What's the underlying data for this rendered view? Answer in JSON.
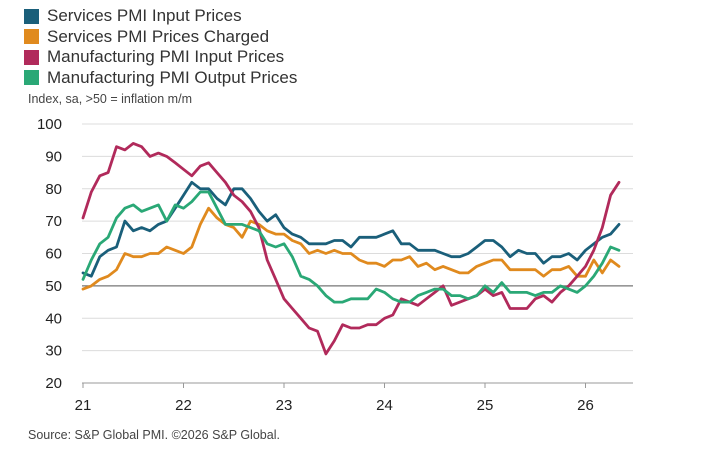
{
  "chart_data": {
    "type": "line",
    "title": "",
    "ylabel": "Index, sa, >50 = inflation m/m",
    "xlabel": "",
    "ylim": [
      20,
      100
    ],
    "yticks": [
      100,
      90,
      80,
      70,
      60,
      50,
      40,
      30,
      20
    ],
    "xlim": [
      21,
      26.5
    ],
    "xticks": [
      "21",
      "22",
      "23",
      "24",
      "25",
      "26"
    ],
    "reference_line": 50,
    "grid": "horizontal",
    "legend_position": "top-left",
    "series": [
      {
        "name": "Services PMI Input Prices",
        "color": "#1a5f7a",
        "x": [
          21.0,
          21.083,
          21.167,
          21.25,
          21.333,
          21.417,
          21.5,
          21.583,
          21.667,
          21.75,
          21.833,
          21.917,
          22.0,
          22.083,
          22.167,
          22.25,
          22.333,
          22.417,
          22.5,
          22.583,
          22.667,
          22.75,
          22.833,
          22.917,
          23.0,
          23.083,
          23.167,
          23.25,
          23.333,
          23.417,
          23.5,
          23.583,
          23.667,
          23.75,
          23.833,
          23.917,
          24.0,
          24.083,
          24.167,
          24.25,
          24.333,
          24.417,
          24.5,
          24.583,
          24.667,
          24.75,
          24.833,
          24.917,
          25.0,
          25.083,
          25.167,
          25.25,
          25.333,
          25.417,
          25.5,
          25.583,
          25.667,
          25.75,
          25.833,
          25.917,
          26.0,
          26.083,
          26.167,
          26.25,
          26.333
        ],
        "values": [
          54,
          53,
          59,
          61,
          62,
          70,
          67,
          68,
          67,
          69,
          70,
          74,
          78,
          82,
          80,
          80,
          77,
          75,
          80,
          80,
          77,
          73,
          70,
          72,
          68,
          66,
          65,
          63,
          63,
          63,
          64,
          64,
          62,
          65,
          65,
          65,
          66,
          67,
          63,
          63,
          61,
          61,
          61,
          60,
          59,
          59,
          60,
          62,
          64,
          64,
          62,
          59,
          61,
          60,
          60,
          57,
          59,
          59,
          60,
          58,
          61,
          63,
          65,
          66,
          69
        ]
      },
      {
        "name": "Services PMI Prices Charged",
        "color": "#e08a1e",
        "x": [
          21.0,
          21.083,
          21.167,
          21.25,
          21.333,
          21.417,
          21.5,
          21.583,
          21.667,
          21.75,
          21.833,
          21.917,
          22.0,
          22.083,
          22.167,
          22.25,
          22.333,
          22.417,
          22.5,
          22.583,
          22.667,
          22.75,
          22.833,
          22.917,
          23.0,
          23.083,
          23.167,
          23.25,
          23.333,
          23.417,
          23.5,
          23.583,
          23.667,
          23.75,
          23.833,
          23.917,
          24.0,
          24.083,
          24.167,
          24.25,
          24.333,
          24.417,
          24.5,
          24.583,
          24.667,
          24.75,
          24.833,
          24.917,
          25.0,
          25.083,
          25.167,
          25.25,
          25.333,
          25.417,
          25.5,
          25.583,
          25.667,
          25.75,
          25.833,
          25.917,
          26.0,
          26.083,
          26.167,
          26.25,
          26.333
        ],
        "values": [
          49,
          50,
          52,
          53,
          55,
          60,
          59,
          59,
          60,
          60,
          62,
          61,
          60,
          62,
          69,
          74,
          71,
          69,
          68,
          65,
          70,
          69,
          67,
          66,
          66,
          64,
          63,
          60,
          61,
          60,
          61,
          60,
          60,
          58,
          57,
          57,
          56,
          58,
          58,
          59,
          56,
          57,
          55,
          56,
          55,
          54,
          54,
          56,
          57,
          58,
          58,
          55,
          55,
          55,
          55,
          53,
          55,
          55,
          56,
          53,
          53,
          58,
          54,
          58,
          56
        ]
      },
      {
        "name": "Manufacturing PMI Input Prices",
        "color": "#b12a5b",
        "x": [
          21.0,
          21.083,
          21.167,
          21.25,
          21.333,
          21.417,
          21.5,
          21.583,
          21.667,
          21.75,
          21.833,
          21.917,
          22.0,
          22.083,
          22.167,
          22.25,
          22.333,
          22.417,
          22.5,
          22.583,
          22.667,
          22.75,
          22.833,
          22.917,
          23.0,
          23.083,
          23.167,
          23.25,
          23.333,
          23.417,
          23.5,
          23.583,
          23.667,
          23.75,
          23.833,
          23.917,
          24.0,
          24.083,
          24.167,
          24.25,
          24.333,
          24.417,
          24.5,
          24.583,
          24.667,
          24.75,
          24.833,
          24.917,
          25.0,
          25.083,
          25.167,
          25.25,
          25.333,
          25.417,
          25.5,
          25.583,
          25.667,
          25.75,
          25.833,
          25.917,
          26.0,
          26.083,
          26.167,
          26.25,
          26.333
        ],
        "values": [
          71,
          79,
          84,
          85,
          93,
          92,
          94,
          93,
          90,
          91,
          90,
          88,
          86,
          84,
          87,
          88,
          85,
          82,
          78,
          76,
          73,
          68,
          58,
          52,
          46,
          43,
          40,
          37,
          36,
          29,
          33,
          38,
          37,
          37,
          38,
          38,
          40,
          41,
          46,
          45,
          44,
          46,
          48,
          50,
          44,
          45,
          46,
          47,
          49,
          47,
          48,
          43,
          43,
          43,
          46,
          47,
          45,
          48,
          50,
          53,
          56,
          61,
          68,
          78,
          82
        ]
      },
      {
        "name": "Manufacturing PMI Output Prices",
        "color": "#2aa876",
        "x": [
          21.0,
          21.083,
          21.167,
          21.25,
          21.333,
          21.417,
          21.5,
          21.583,
          21.667,
          21.75,
          21.833,
          21.917,
          22.0,
          22.083,
          22.167,
          22.25,
          22.333,
          22.417,
          22.5,
          22.583,
          22.667,
          22.75,
          22.833,
          22.917,
          23.0,
          23.083,
          23.167,
          23.25,
          23.333,
          23.417,
          23.5,
          23.583,
          23.667,
          23.75,
          23.833,
          23.917,
          24.0,
          24.083,
          24.167,
          24.25,
          24.333,
          24.417,
          24.5,
          24.583,
          24.667,
          24.75,
          24.833,
          24.917,
          25.0,
          25.083,
          25.167,
          25.25,
          25.333,
          25.417,
          25.5,
          25.583,
          25.667,
          25.75,
          25.833,
          25.917,
          26.0,
          26.083,
          26.167,
          26.25,
          26.333
        ],
        "values": [
          52,
          58,
          63,
          65,
          71,
          74,
          75,
          73,
          74,
          75,
          70,
          75,
          74,
          76,
          79,
          79,
          74,
          69,
          69,
          69,
          68,
          67,
          63,
          62,
          63,
          59,
          53,
          52,
          50,
          47,
          45,
          45,
          46,
          46,
          46,
          49,
          48,
          46,
          45,
          45,
          47,
          48,
          49,
          49,
          47,
          47,
          46,
          47,
          50,
          48,
          51,
          48,
          48,
          48,
          47,
          48,
          48,
          50,
          49,
          48,
          50,
          53,
          57,
          62,
          61
        ]
      }
    ]
  },
  "source": "Source: S&P Global PMI. ©2026 S&P Global."
}
